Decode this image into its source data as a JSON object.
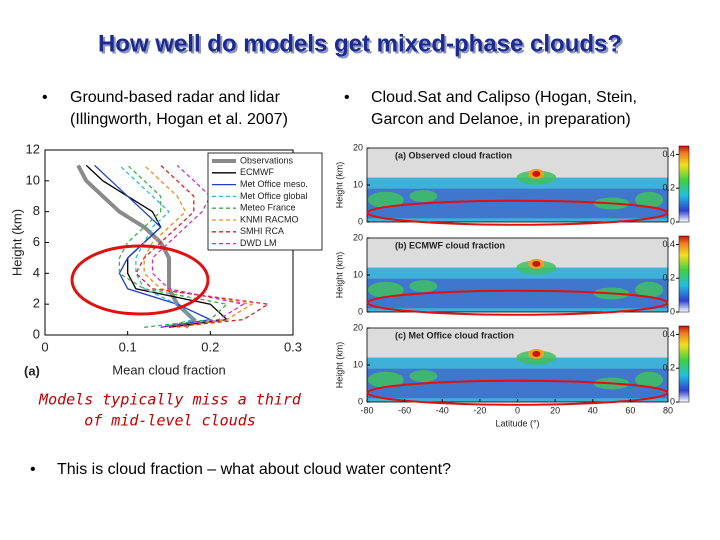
{
  "title": "How well do models get mixed-phase clouds?",
  "left_bullet": [
    "Ground-based radar and lidar",
    "(Illingworth, Hogan et al. 2007)"
  ],
  "right_bullet": [
    "Cloud.Sat and Calipso (Hogan, Stein,",
    "Garcon and Delanoe, in preparation)"
  ],
  "caption": [
    "Models typically miss a third",
    "of mid-level clouds"
  ],
  "bottom_bullet": "This is cloud fraction – what about cloud water content?",
  "left_figure": {
    "type": "line",
    "panel_label": "(a)",
    "x_label": "Mean cloud fraction",
    "y_label": "Height (km)",
    "xlim": [
      0,
      0.3
    ],
    "xticks": [
      0,
      0.1,
      0.2,
      0.3
    ],
    "ylim": [
      0,
      12
    ],
    "yticks": [
      0,
      2,
      4,
      6,
      8,
      10,
      12
    ],
    "heights": [
      0.5,
      1,
      2,
      3,
      4,
      5,
      6,
      7,
      8,
      9,
      10,
      11
    ],
    "series": [
      {
        "name": "Observations",
        "color": "#8a8a8a",
        "style": "thick",
        "values": [
          0.17,
          0.18,
          0.16,
          0.15,
          0.15,
          0.15,
          0.14,
          0.12,
          0.09,
          0.07,
          0.05,
          0.04
        ]
      },
      {
        "name": "ECMWF",
        "color": "#000000",
        "style": "solid",
        "values": [
          0.15,
          0.22,
          0.2,
          0.11,
          0.1,
          0.1,
          0.12,
          0.14,
          0.13,
          0.1,
          0.07,
          0.05
        ]
      },
      {
        "name": "Met Office meso.",
        "color": "#1f3fcf",
        "style": "solid",
        "values": [
          0.14,
          0.2,
          0.16,
          0.1,
          0.09,
          0.1,
          0.12,
          0.14,
          0.12,
          0.1,
          0.08,
          0.06
        ]
      },
      {
        "name": "Met Office global",
        "color": "#30b8e0",
        "style": "dashed",
        "values": [
          0.14,
          0.18,
          0.16,
          0.12,
          0.11,
          0.11,
          0.12,
          0.13,
          0.15,
          0.13,
          0.11,
          0.09
        ]
      },
      {
        "name": "Meteo France",
        "color": "#3cb04c",
        "style": "dashed",
        "values": [
          0.12,
          0.2,
          0.22,
          0.12,
          0.09,
          0.09,
          0.1,
          0.12,
          0.14,
          0.14,
          0.12,
          0.1
        ]
      },
      {
        "name": "KNMI RACMO",
        "color": "#f08a20",
        "style": "dashed",
        "values": [
          0.16,
          0.22,
          0.25,
          0.14,
          0.12,
          0.12,
          0.13,
          0.15,
          0.17,
          0.16,
          0.14,
          0.12
        ]
      },
      {
        "name": "SMHI RCA",
        "color": "#e02020",
        "style": "dashed",
        "values": [
          0.15,
          0.24,
          0.27,
          0.13,
          0.11,
          0.12,
          0.14,
          0.16,
          0.18,
          0.18,
          0.16,
          0.14
        ]
      },
      {
        "name": "DWD LM",
        "color": "#d030c0",
        "style": "dashed",
        "values": [
          0.14,
          0.21,
          0.24,
          0.15,
          0.13,
          0.13,
          0.15,
          0.17,
          0.19,
          0.2,
          0.18,
          0.16
        ]
      }
    ]
  },
  "right_figure": {
    "panels": [
      "(a) Observed cloud fraction",
      "(b) ECMWF cloud fraction",
      "(c) Met Office cloud fraction"
    ],
    "y_label": "Height (km)",
    "ylim": [
      0,
      20
    ],
    "yticks": [
      0,
      10,
      20
    ],
    "x_label": "Latitude (°)",
    "xlim": [
      -80,
      80
    ],
    "xticks": [
      -80,
      -60,
      -40,
      -20,
      0,
      20,
      40,
      60,
      80
    ],
    "colorbar_lim": [
      0,
      0.45
    ],
    "colorbar_ticks": [
      0,
      0.2,
      0.4
    ]
  }
}
